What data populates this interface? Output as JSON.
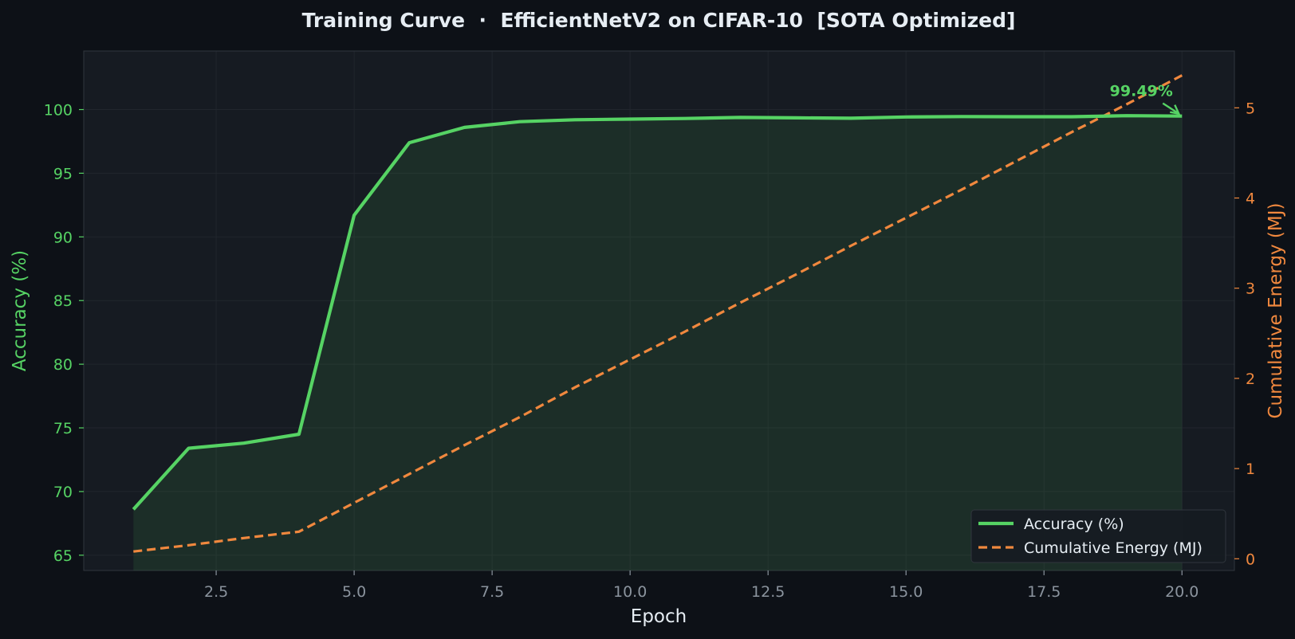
{
  "chart_data": {
    "type": "line",
    "title": "Training Curve  ·  EfficientNetV2 on CIFAR-10  [SOTA Optimized]",
    "xlabel": "Epoch",
    "ylabel_left": "Accuracy (%)",
    "ylabel_right": "Cumulative Energy (MJ)",
    "xlim": [
      0.1,
      20.95
    ],
    "ylim_left": [
      63.8,
      104.6
    ],
    "ylim_right": [
      -0.13,
      5.63
    ],
    "x_ticks": [
      "2.5",
      "5.0",
      "7.5",
      "10.0",
      "12.5",
      "15.0",
      "17.5",
      "20.0"
    ],
    "y_left_ticks": [
      "65",
      "70",
      "75",
      "80",
      "85",
      "90",
      "95",
      "100"
    ],
    "y_right_ticks": [
      "0",
      "1",
      "2",
      "3",
      "4",
      "5"
    ],
    "grid": true,
    "legend_position": "bottom-right",
    "x": [
      1,
      2,
      3,
      4,
      5,
      6,
      7,
      8,
      9,
      10,
      11,
      12,
      13,
      14,
      15,
      16,
      17,
      18,
      19,
      20
    ],
    "series": [
      {
        "name": "Accuracy (%)",
        "axis": "left",
        "color": "#56d364",
        "style": "solid",
        "values": [
          68.6,
          73.4,
          73.8,
          74.5,
          91.7,
          97.4,
          98.6,
          99.05,
          99.2,
          99.25,
          99.3,
          99.38,
          99.35,
          99.32,
          99.42,
          99.45,
          99.44,
          99.44,
          99.52,
          99.49
        ]
      },
      {
        "name": "Cumulative Energy (MJ)",
        "axis": "right",
        "color": "#f0883e",
        "style": "dashed",
        "values": [
          0.08,
          0.15,
          0.23,
          0.3,
          0.62,
          0.94,
          1.26,
          1.57,
          1.9,
          2.21,
          2.52,
          2.84,
          3.15,
          3.47,
          3.78,
          4.09,
          4.41,
          4.73,
          5.04,
          5.36
        ]
      }
    ],
    "annotation": {
      "text": "99.49%",
      "x": 20,
      "y": 99.49,
      "color": "#56d364"
    }
  },
  "theme": {
    "background": "#0d1117",
    "plot_background": "#161b22",
    "grid_color": "#21262d",
    "text_color": "#e6edf3",
    "tick_color": "#8b949e",
    "left_axis_color": "#56d364",
    "right_axis_color": "#f0883e"
  }
}
